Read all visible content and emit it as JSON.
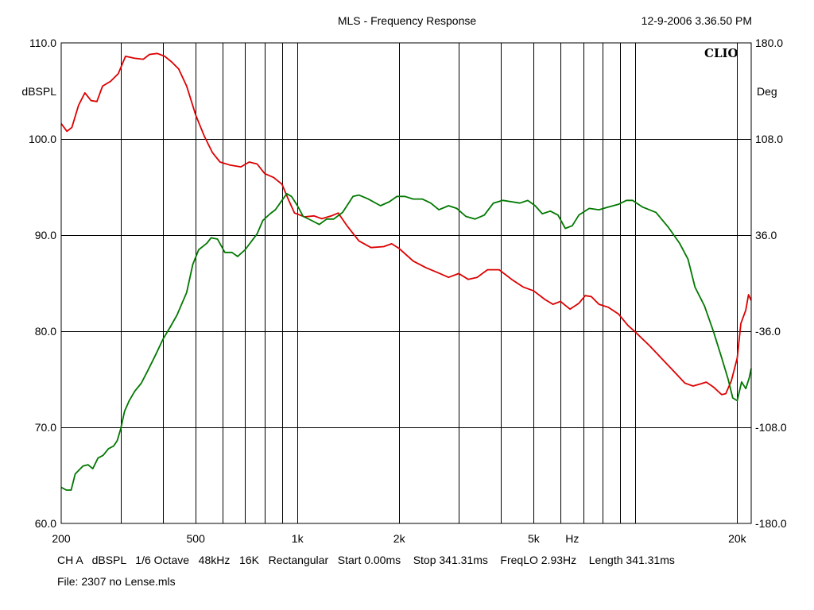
{
  "header": {
    "title": "MLS - Frequency Response",
    "timestamp": "12-9-2006 3.36.50 PM",
    "brand": "CLIO"
  },
  "footer": {
    "line1": "CH A   dBSPL   1/6 Octave   48kHz   16K   Rectangular   Start 0.00ms    Stop 341.31ms    FreqLO 2.93Hz    Length 341.31ms",
    "line2": "File: 2307 no Lense.mls"
  },
  "colors": {
    "magnitude": "#dd0000",
    "phase": "#007800",
    "grid": "#000000"
  },
  "chart_data": {
    "type": "line",
    "x_scale": "log",
    "xlim": [
      200,
      22000
    ],
    "grid": true,
    "x_ticks": [
      {
        "value": 200,
        "label": "200"
      },
      {
        "value": 500,
        "label": "500"
      },
      {
        "value": 1000,
        "label": "1k"
      },
      {
        "value": 2000,
        "label": "2k"
      },
      {
        "value": 5000,
        "label": "5k"
      },
      {
        "value": 20000,
        "label": "20k"
      }
    ],
    "x_unit_label": {
      "value": 6500,
      "label": "Hz"
    },
    "x_gridlines": [
      300,
      400,
      500,
      600,
      700,
      800,
      900,
      1000,
      2000,
      3000,
      4000,
      5000,
      6000,
      7000,
      8000,
      9000,
      10000,
      20000
    ],
    "y_left": {
      "label": "dBSPL",
      "lim": [
        60,
        110
      ],
      "ticks": [
        "60.0",
        "70.0",
        "80.0",
        "90.0",
        "100.0",
        "110.0"
      ]
    },
    "y_right": {
      "label": "Deg",
      "lim": [
        -180,
        180
      ],
      "ticks": [
        "-180.0",
        "-108.0",
        "-36.0",
        "36.0",
        "108.0",
        "180.0"
      ]
    },
    "series": [
      {
        "axis": "left",
        "color": "#dd0000",
        "points": [
          [
            200,
            101.6
          ],
          [
            208,
            100.8
          ],
          [
            215,
            101.2
          ],
          [
            225,
            103.5
          ],
          [
            235,
            104.8
          ],
          [
            245,
            104
          ],
          [
            255,
            103.9
          ],
          [
            265,
            105.5
          ],
          [
            280,
            106
          ],
          [
            295,
            106.8
          ],
          [
            310,
            108.6
          ],
          [
            330,
            108.4
          ],
          [
            350,
            108.3
          ],
          [
            365,
            108.8
          ],
          [
            385,
            108.9
          ],
          [
            405,
            108.6
          ],
          [
            425,
            108.0
          ],
          [
            445,
            107.3
          ],
          [
            470,
            105.5
          ],
          [
            500,
            102.5
          ],
          [
            530,
            100.3
          ],
          [
            560,
            98.6
          ],
          [
            590,
            97.6
          ],
          [
            630,
            97.3
          ],
          [
            680,
            97.1
          ],
          [
            720,
            97.6
          ],
          [
            760,
            97.4
          ],
          [
            800,
            96.4
          ],
          [
            850,
            96.0
          ],
          [
            900,
            95.3
          ],
          [
            940,
            93.7
          ],
          [
            980,
            92.3
          ],
          [
            1050,
            91.9
          ],
          [
            1120,
            92.0
          ],
          [
            1180,
            91.7
          ],
          [
            1260,
            92.0
          ],
          [
            1320,
            92.3
          ],
          [
            1400,
            91.0
          ],
          [
            1520,
            89.4
          ],
          [
            1650,
            88.7
          ],
          [
            1800,
            88.8
          ],
          [
            1900,
            89.1
          ],
          [
            2000,
            88.6
          ],
          [
            2200,
            87.3
          ],
          [
            2400,
            86.6
          ],
          [
            2600,
            86.1
          ],
          [
            2800,
            85.6
          ],
          [
            3000,
            86.0
          ],
          [
            3200,
            85.4
          ],
          [
            3400,
            85.6
          ],
          [
            3650,
            86.4
          ],
          [
            3950,
            86.4
          ],
          [
            4300,
            85.4
          ],
          [
            4650,
            84.6
          ],
          [
            5000,
            84.2
          ],
          [
            5400,
            83.3
          ],
          [
            5700,
            82.8
          ],
          [
            6000,
            83.1
          ],
          [
            6400,
            82.3
          ],
          [
            6800,
            82.9
          ],
          [
            7100,
            83.7
          ],
          [
            7400,
            83.6
          ],
          [
            7800,
            82.8
          ],
          [
            8300,
            82.5
          ],
          [
            8900,
            81.8
          ],
          [
            9500,
            80.6
          ],
          [
            10000,
            79.9
          ],
          [
            11000,
            78.5
          ],
          [
            12000,
            77.1
          ],
          [
            13000,
            75.8
          ],
          [
            14000,
            74.6
          ],
          [
            14800,
            74.3
          ],
          [
            15500,
            74.5
          ],
          [
            16200,
            74.7
          ],
          [
            17000,
            74.2
          ],
          [
            18000,
            73.4
          ],
          [
            18500,
            73.5
          ],
          [
            19200,
            74.8
          ],
          [
            20000,
            77.2
          ],
          [
            20500,
            80.8
          ],
          [
            21200,
            82.2
          ],
          [
            21600,
            83.8
          ],
          [
            22000,
            83.2
          ]
        ]
      },
      {
        "axis": "right",
        "color": "#007800",
        "points": [
          [
            200,
            -153
          ],
          [
            207,
            -155
          ],
          [
            214,
            -155
          ],
          [
            220,
            -143
          ],
          [
            232,
            -137
          ],
          [
            240,
            -136
          ],
          [
            248,
            -139
          ],
          [
            257,
            -131
          ],
          [
            266,
            -129
          ],
          [
            276,
            -124
          ],
          [
            286,
            -122
          ],
          [
            293,
            -118
          ],
          [
            300,
            -109
          ],
          [
            308,
            -96
          ],
          [
            318,
            -88
          ],
          [
            330,
            -81
          ],
          [
            345,
            -75
          ],
          [
            360,
            -66
          ],
          [
            380,
            -54
          ],
          [
            400,
            -42
          ],
          [
            420,
            -33
          ],
          [
            440,
            -24
          ],
          [
            470,
            -7
          ],
          [
            490,
            14
          ],
          [
            510,
            25
          ],
          [
            540,
            30
          ],
          [
            555,
            34
          ],
          [
            580,
            33
          ],
          [
            610,
            23
          ],
          [
            640,
            23
          ],
          [
            665,
            20
          ],
          [
            700,
            25
          ],
          [
            760,
            37
          ],
          [
            790,
            47
          ],
          [
            830,
            52
          ],
          [
            860,
            55
          ],
          [
            900,
            62
          ],
          [
            930,
            67
          ],
          [
            960,
            65
          ],
          [
            1000,
            58
          ],
          [
            1040,
            50
          ],
          [
            1100,
            47
          ],
          [
            1160,
            44
          ],
          [
            1220,
            48
          ],
          [
            1280,
            48
          ],
          [
            1360,
            53
          ],
          [
            1460,
            65
          ],
          [
            1520,
            66
          ],
          [
            1620,
            63
          ],
          [
            1760,
            58
          ],
          [
            1870,
            61
          ],
          [
            1970,
            65
          ],
          [
            2080,
            65
          ],
          [
            2200,
            63
          ],
          [
            2340,
            63
          ],
          [
            2480,
            60
          ],
          [
            2620,
            55
          ],
          [
            2800,
            58
          ],
          [
            2960,
            56
          ],
          [
            3150,
            50
          ],
          [
            3350,
            48
          ],
          [
            3570,
            51
          ],
          [
            3800,
            60
          ],
          [
            4050,
            62
          ],
          [
            4300,
            61
          ],
          [
            4550,
            60
          ],
          [
            4800,
            62
          ],
          [
            5050,
            58
          ],
          [
            5300,
            52
          ],
          [
            5600,
            54
          ],
          [
            5900,
            51
          ],
          [
            6200,
            41
          ],
          [
            6500,
            43
          ],
          [
            6800,
            51
          ],
          [
            7300,
            56
          ],
          [
            7800,
            55
          ],
          [
            8300,
            57
          ],
          [
            8900,
            59
          ],
          [
            9400,
            62
          ],
          [
            9800,
            62
          ],
          [
            10500,
            57
          ],
          [
            11500,
            53
          ],
          [
            12500,
            42
          ],
          [
            13500,
            30
          ],
          [
            14300,
            18
          ],
          [
            15000,
            -3
          ],
          [
            16000,
            -17
          ],
          [
            17000,
            -36
          ],
          [
            18000,
            -56
          ],
          [
            18800,
            -72
          ],
          [
            19400,
            -86
          ],
          [
            20000,
            -88
          ],
          [
            20600,
            -74
          ],
          [
            21200,
            -79
          ],
          [
            21700,
            -71
          ],
          [
            22000,
            -64
          ]
        ]
      }
    ]
  }
}
